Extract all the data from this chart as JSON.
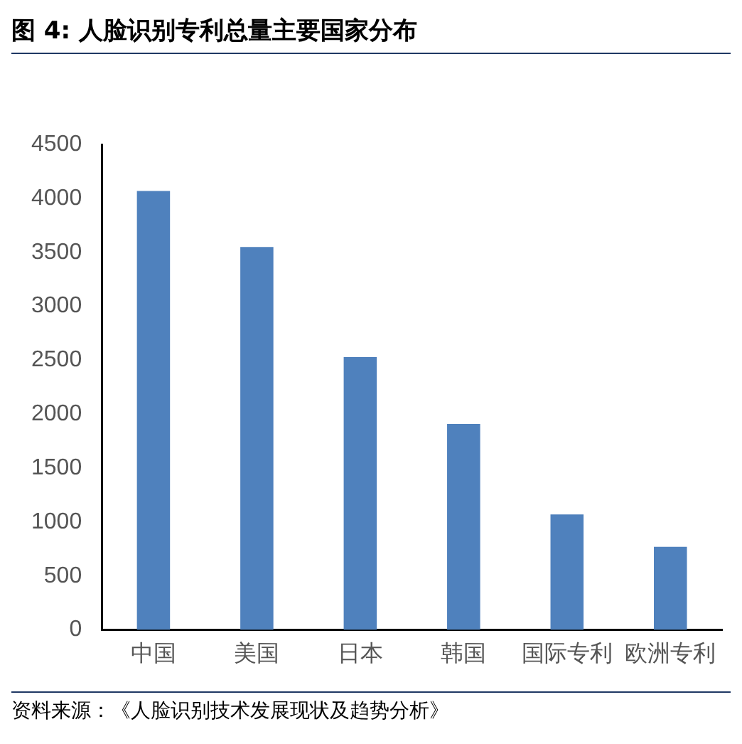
{
  "chart_data": {
    "type": "bar",
    "title": "图 4:  人脸识别专利总量主要国家分布",
    "categories": [
      "中国",
      "美国",
      "日本",
      "韩国",
      "国际专利",
      "欧洲专利"
    ],
    "values": [
      4070,
      3550,
      2530,
      1910,
      1070,
      770
    ],
    "color": "#4f81bd",
    "ylim": [
      0,
      4500
    ],
    "yticks": [
      0,
      500,
      1000,
      1500,
      2000,
      2500,
      3000,
      3500,
      4000,
      4500
    ],
    "grid": false,
    "legend": false,
    "annotations": [
      "资料来源：《人脸识别技术发展现状及趋势分析》"
    ]
  }
}
